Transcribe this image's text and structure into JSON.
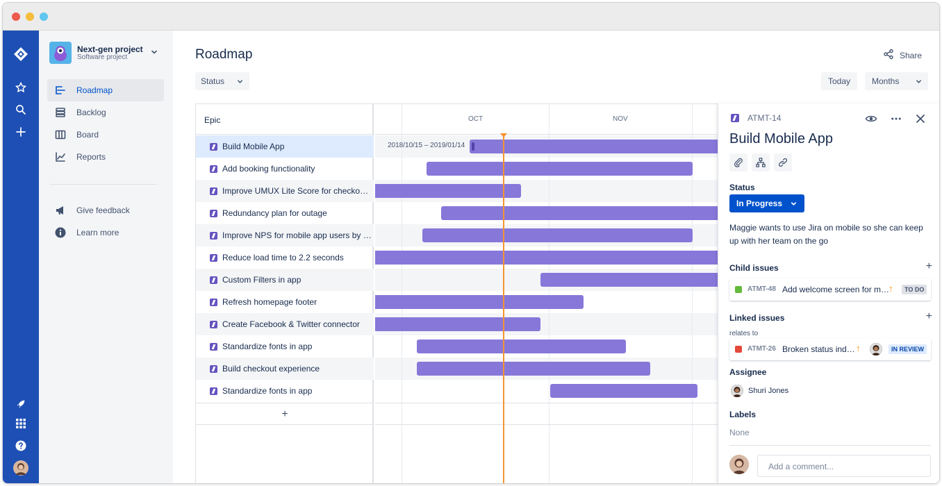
{
  "sidebar": {
    "project_name": "Next-gen project",
    "project_type": "Software project",
    "items": [
      {
        "label": "Roadmap"
      },
      {
        "label": "Backlog"
      },
      {
        "label": "Board"
      },
      {
        "label": "Reports"
      }
    ],
    "secondary": [
      {
        "label": "Give feedback"
      },
      {
        "label": "Learn more"
      }
    ]
  },
  "header": {
    "title": "Roadmap",
    "share_label": "Share",
    "status_filter": "Status",
    "today_label": "Today",
    "timescale": "Months"
  },
  "roadmap": {
    "epic_header": "Epic",
    "months": [
      "OCT",
      "NOV"
    ],
    "selected_date_range": "2018/10/15 – 2019/01/14",
    "add_symbol": "+",
    "epics": [
      {
        "label": "Build Mobile App"
      },
      {
        "label": "Add booking functionality"
      },
      {
        "label": "Improve UMUX Lite Score for checko…"
      },
      {
        "label": "Redundancy plan for outage"
      },
      {
        "label": "Improve NPS for mobile app users by …"
      },
      {
        "label": "Reduce load time to 2.2 seconds"
      },
      {
        "label": "Custom Filters in app"
      },
      {
        "label": "Refresh homepage footer"
      },
      {
        "label": "Create Facebook & Twitter connector"
      },
      {
        "label": "Standardize fonts in app"
      },
      {
        "label": "Build checkout experience"
      },
      {
        "label": "Standardize fonts in app"
      }
    ]
  },
  "panel": {
    "issue_key": "ATMT-14",
    "title": "Build Mobile App",
    "status_label": "Status",
    "status_value": "In Progress",
    "description": "Maggie wants to use Jira on mobile so she can keep up with her team on the go",
    "child_issues_label": "Child issues",
    "child_issue": {
      "key": "ATMT-48",
      "summary": "Add welcome screen for m…",
      "status": "TO DO"
    },
    "linked_issues_label": "Linked issues",
    "relates_to": "relates to",
    "linked_issue": {
      "key": "ATMT-26",
      "summary": "Broken status ind…",
      "status": "IN REVIEW"
    },
    "assignee_label": "Assignee",
    "assignee_name": "Shuri Jones",
    "labels_label": "Labels",
    "labels_value": "None",
    "comment_placeholder": "Add a comment...",
    "plus": "+"
  },
  "colors": {
    "global_nav": "#1e4fb4",
    "epic_purple": "#6554c0",
    "bar": "#8777d9",
    "today_line": "#f79233",
    "primary": "#0052cc"
  }
}
